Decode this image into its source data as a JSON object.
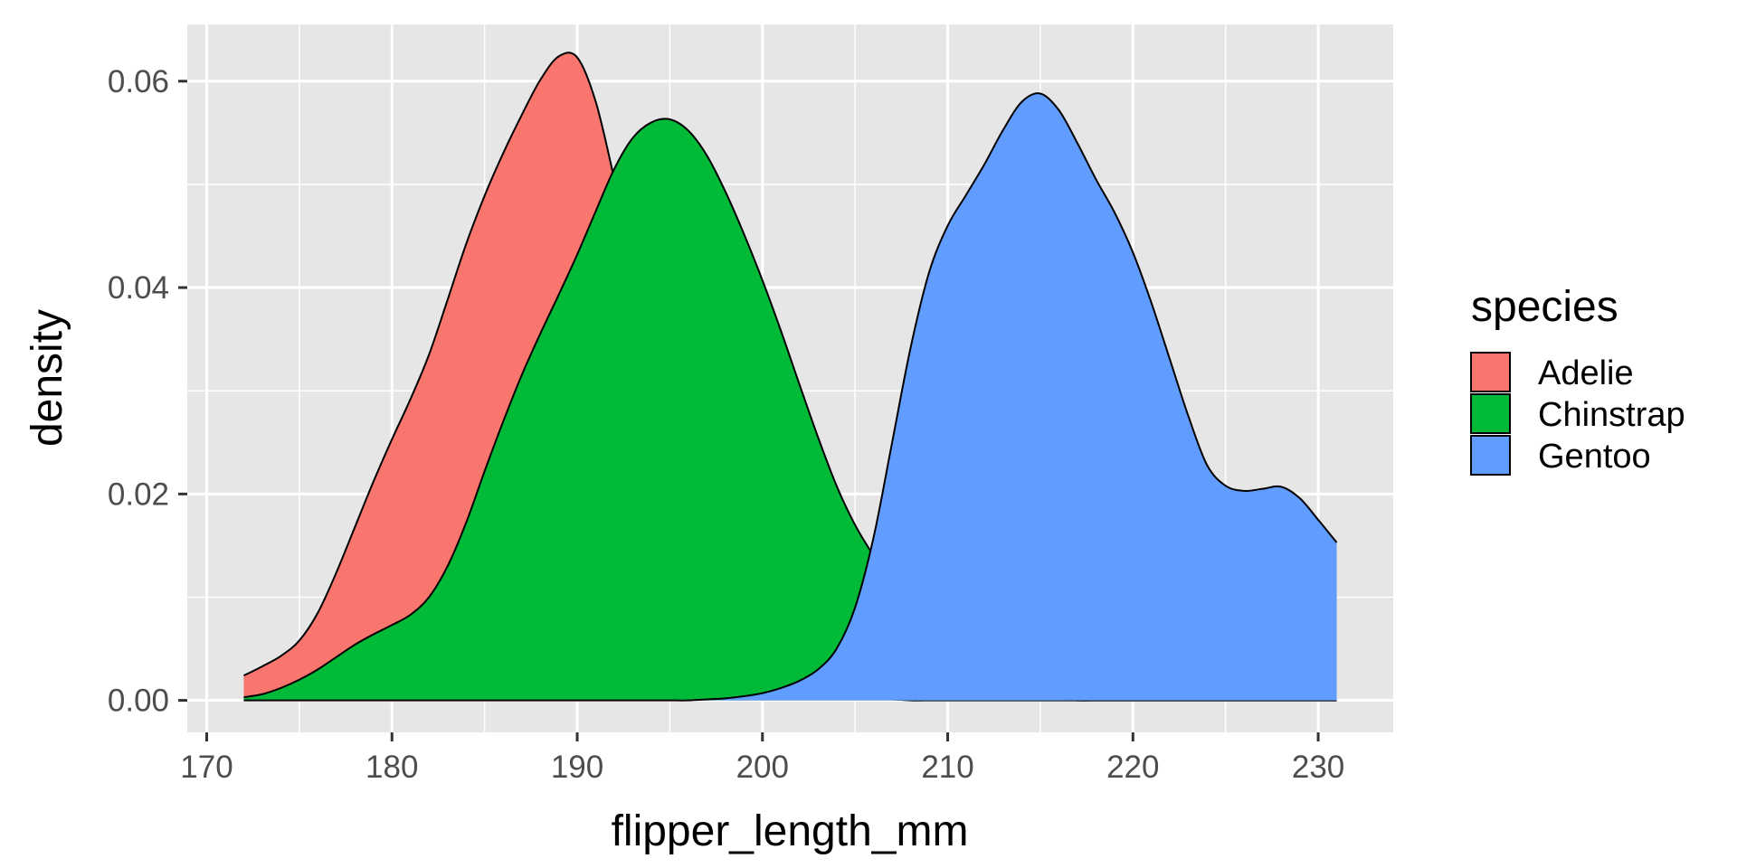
{
  "chart_data": {
    "type": "area",
    "subtype": "density",
    "title": "",
    "xlabel": "flipper_length_mm",
    "ylabel": "density",
    "xlim": [
      168.95,
      234.05
    ],
    "ylim": [
      -0.0031,
      0.0655
    ],
    "x_ticks": [
      170,
      180,
      190,
      200,
      210,
      220,
      230
    ],
    "x_tick_labels": [
      "170",
      "180",
      "190",
      "200",
      "210",
      "220",
      "230"
    ],
    "y_ticks": [
      0.0,
      0.02,
      0.04,
      0.06
    ],
    "y_tick_labels": [
      "0.00",
      "0.02",
      "0.04",
      "0.06"
    ],
    "grid": true,
    "panel_background": "#e6e6e6",
    "legend": {
      "title": "species",
      "position": "right"
    },
    "series": [
      {
        "name": "Adelie",
        "color": "#F8766D",
        "x": [
          172,
          173,
          174,
          175,
          176,
          177,
          178,
          179,
          180,
          181,
          182,
          183,
          184,
          185,
          186,
          187,
          188,
          189,
          190,
          191,
          192,
          193,
          194,
          195,
          196,
          197,
          198,
          199,
          200,
          201,
          202,
          203,
          204,
          205,
          206,
          207,
          208,
          209,
          210,
          211,
          212,
          213,
          214,
          215,
          216,
          217,
          218,
          219,
          220,
          221,
          222,
          223,
          224,
          225,
          226,
          227,
          228,
          229,
          230,
          231
        ],
        "y": [
          0.0024,
          0.0033,
          0.0043,
          0.0058,
          0.0085,
          0.0124,
          0.0168,
          0.0212,
          0.0253,
          0.0292,
          0.0335,
          0.0388,
          0.0442,
          0.0489,
          0.053,
          0.0567,
          0.0601,
          0.0624,
          0.0623,
          0.058,
          0.0505,
          0.042,
          0.033,
          0.0245,
          0.0175,
          0.012,
          0.008,
          0.005,
          0.003,
          0.0018,
          0.001,
          0.0005,
          0.0003,
          0.0002,
          0.0001,
          0.0001,
          0.0,
          0.0,
          0.0,
          0.0,
          0.0,
          0.0,
          0.0,
          0.0,
          0.0,
          0.0,
          0.0,
          0.0,
          0.0,
          0.0,
          0.0,
          0.0,
          0.0,
          0.0,
          0.0,
          0.0,
          0.0,
          0.0,
          0.0,
          0.0
        ]
      },
      {
        "name": "Chinstrap",
        "color": "#00BA38",
        "x": [
          172,
          173,
          174,
          175,
          176,
          177,
          178,
          179,
          180,
          181,
          182,
          183,
          184,
          185,
          186,
          187,
          188,
          189,
          190,
          191,
          192,
          193,
          194,
          195,
          196,
          197,
          198,
          199,
          200,
          201,
          202,
          203,
          204,
          205,
          206,
          207,
          208,
          209,
          210,
          211,
          212,
          213,
          214,
          215,
          216,
          217,
          218,
          219,
          220,
          221,
          222,
          223,
          224,
          225,
          226,
          227,
          228,
          229,
          230,
          231
        ],
        "y": [
          0.0003,
          0.0006,
          0.0012,
          0.002,
          0.003,
          0.0042,
          0.0054,
          0.0064,
          0.0073,
          0.0083,
          0.01,
          0.013,
          0.0172,
          0.0222,
          0.027,
          0.0315,
          0.0355,
          0.0393,
          0.0432,
          0.0474,
          0.0515,
          0.0545,
          0.056,
          0.0563,
          0.0552,
          0.0528,
          0.0493,
          0.0452,
          0.0407,
          0.0358,
          0.0306,
          0.0255,
          0.0208,
          0.017,
          0.014,
          0.0112,
          0.0085,
          0.006,
          0.0038,
          0.0022,
          0.0012,
          0.0006,
          0.0003,
          0.0001,
          0.0001,
          0.0,
          0.0,
          0.0,
          0.0,
          0.0,
          0.0,
          0.0,
          0.0,
          0.0,
          0.0,
          0.0,
          0.0,
          0.0,
          0.0,
          0.0
        ]
      },
      {
        "name": "Gentoo",
        "color": "#619CFF",
        "x": [
          172,
          173,
          174,
          175,
          176,
          177,
          178,
          179,
          180,
          181,
          182,
          183,
          184,
          185,
          186,
          187,
          188,
          189,
          190,
          191,
          192,
          193,
          194,
          195,
          196,
          197,
          198,
          199,
          200,
          201,
          202,
          203,
          204,
          205,
          206,
          207,
          208,
          209,
          210,
          211,
          212,
          213,
          214,
          215,
          216,
          217,
          218,
          219,
          220,
          221,
          222,
          223,
          224,
          225,
          226,
          227,
          228,
          229,
          230,
          231
        ],
        "y": [
          0.0,
          0.0,
          0.0,
          0.0,
          0.0,
          0.0,
          0.0,
          0.0,
          0.0,
          0.0,
          0.0,
          0.0,
          0.0,
          0.0,
          0.0,
          0.0,
          0.0,
          0.0,
          0.0,
          0.0,
          0.0,
          0.0,
          0.0,
          0.0,
          0.0,
          0.0001,
          0.0002,
          0.0004,
          0.0007,
          0.0012,
          0.0019,
          0.003,
          0.005,
          0.009,
          0.0158,
          0.025,
          0.0342,
          0.0415,
          0.046,
          0.049,
          0.052,
          0.0553,
          0.058,
          0.0588,
          0.0572,
          0.054,
          0.0505,
          0.0473,
          0.0434,
          0.0385,
          0.033,
          0.0275,
          0.0228,
          0.0208,
          0.0203,
          0.0205,
          0.0207,
          0.0196,
          0.0175,
          0.0153
        ]
      }
    ]
  }
}
